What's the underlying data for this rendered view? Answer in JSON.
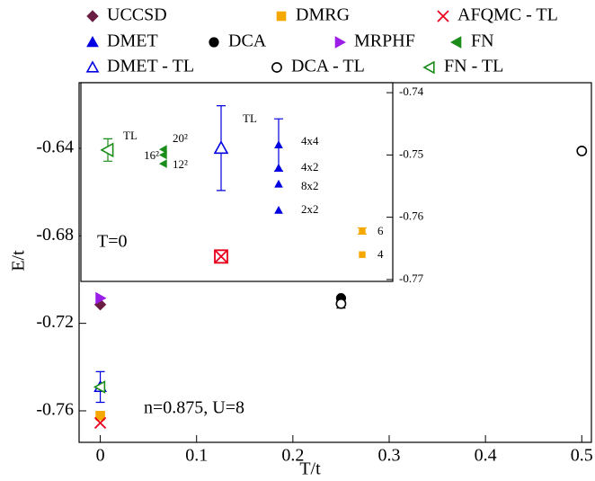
{
  "chart_data": {
    "type": "scatter",
    "xlabel": "T/t",
    "ylabel": "E/t",
    "xlim": [
      -0.022,
      0.51
    ],
    "ylim": [
      -0.7744,
      -0.61
    ],
    "xticks": [
      0,
      0.1,
      0.2,
      0.3,
      0.4,
      0.5
    ],
    "yticks": [
      -0.64,
      -0.68,
      -0.72,
      -0.76
    ],
    "annotation": "n=0.875, U=8",
    "series": [
      {
        "name": "UCCSD",
        "color": "#6b1e44",
        "marker": "diamond",
        "x": [
          0
        ],
        "values": [
          -0.7114
        ]
      },
      {
        "name": "DMRG",
        "color": "#f5a800",
        "marker": "square",
        "x": [
          0
        ],
        "values": [
          -0.7622
        ]
      },
      {
        "name": "AFQMC - TL",
        "color": "#e8001c",
        "marker": "cross",
        "x": [
          0
        ],
        "values": [
          -0.7655
        ]
      },
      {
        "name": "DMET",
        "color": "#0000e0",
        "marker": "triangle",
        "x": [
          0
        ],
        "values": [
          -0.7491
        ]
      },
      {
        "name": "DCA",
        "color": "#000000",
        "marker": "circle",
        "x": [
          0.25,
          0.5
        ],
        "values": [
          -0.7085,
          -0.6412
        ]
      },
      {
        "name": "MRPHF",
        "color": "#9b1ee8",
        "marker": "tri-right",
        "x": [
          0
        ],
        "values": [
          -0.7085
        ]
      },
      {
        "name": "FN",
        "color": "#1a8c1a",
        "marker": "tri-left",
        "x": [
          0
        ],
        "values": [
          -0.7491
        ]
      },
      {
        "name": "DMET - TL",
        "color": "#0000e0",
        "marker": "triangle-open",
        "x": [
          0
        ],
        "values": [
          -0.7491
        ],
        "errors": [
          0.007
        ]
      },
      {
        "name": "DCA - TL",
        "color": "#000000",
        "marker": "circle-open",
        "x": [
          0.25,
          0.5
        ],
        "values": [
          -0.711,
          -0.6412
        ],
        "errors": [
          0.002,
          0.0008
        ]
      },
      {
        "name": "FN - TL",
        "color": "#1a8c1a",
        "marker": "tri-left-open",
        "x": [
          0
        ],
        "values": [
          -0.7491
        ]
      }
    ],
    "inset": {
      "title": "T=0",
      "ylim": [
        -0.7703,
        -0.7384
      ],
      "yticks": [
        -0.74,
        -0.75,
        -0.76,
        -0.77
      ],
      "groups": [
        {
          "color": "#1a8c1a",
          "marker": "tri-left-open",
          "labels": [
            "TL"
          ],
          "values": [
            -0.7492
          ],
          "errors": [
            0.0018
          ]
        },
        {
          "color": "#1a8c1a",
          "marker": "tri-left",
          "labels": [
            "20²",
            "16²",
            "12²"
          ],
          "values": [
            -0.7491,
            -0.75,
            -0.7514
          ]
        },
        {
          "color": "#0000e0",
          "marker": "triangle-open",
          "labels": [
            "TL"
          ],
          "values": [
            -0.7489
          ],
          "errors": [
            0.0068
          ]
        },
        {
          "color": "#0000e0",
          "marker": "triangle",
          "labels": [
            "4x4",
            "4x2",
            "8x2",
            "2x2"
          ],
          "values": [
            -0.7484,
            -0.7521,
            -0.7547,
            -0.7589
          ],
          "errors": [
            0.0042,
            null,
            null,
            null
          ]
        },
        {
          "color": "#e8001c",
          "marker": "cross-box",
          "values": [
            -0.7663
          ]
        },
        {
          "color": "#f5a800",
          "marker": "square",
          "labels": [
            "6",
            "4"
          ],
          "values": [
            -0.7622,
            -0.766
          ],
          "errors": [
            0.0005,
            null
          ]
        }
      ]
    }
  }
}
